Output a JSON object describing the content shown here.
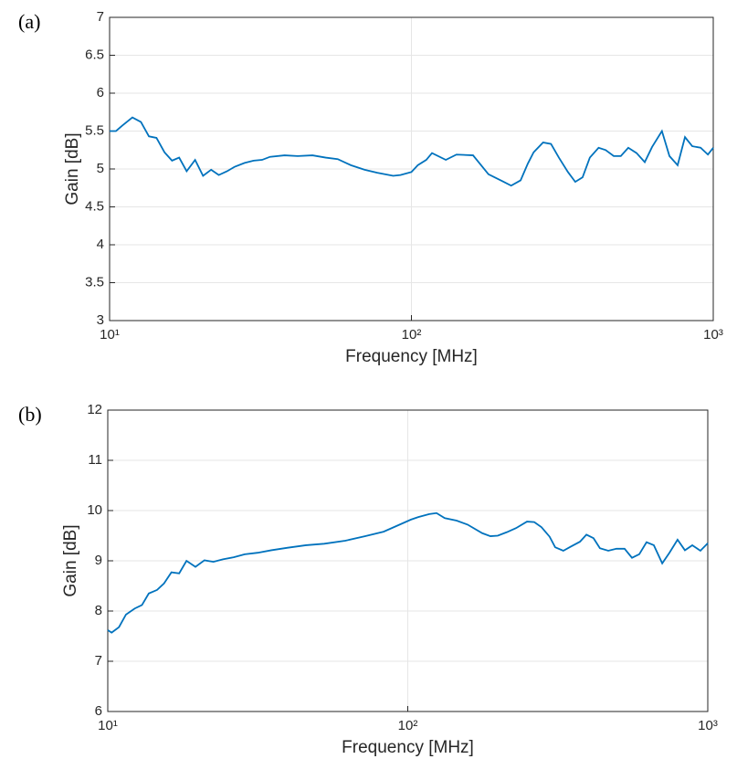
{
  "chart_data": [
    {
      "type": "line",
      "label": "(a)",
      "xlabel": "Frequency [MHz]",
      "ylabel": "Gain [dB]",
      "xscale": "log",
      "grid": true,
      "xlim": [
        10,
        1000
      ],
      "xticks": [
        {
          "value": 10,
          "label": "10¹"
        },
        {
          "value": 100,
          "label": "10²"
        },
        {
          "value": 1000,
          "label": "10³"
        }
      ],
      "ylim": [
        3,
        7
      ],
      "yticks": [
        3,
        3.5,
        4,
        4.5,
        5,
        5.5,
        6,
        6.5,
        7
      ],
      "x": [
        10,
        10.5,
        11,
        11.9,
        12.7,
        13.5,
        14.3,
        15.2,
        16.1,
        17,
        18,
        19.2,
        20.4,
        21.7,
        23,
        24.5,
        26,
        28,
        30,
        32,
        34,
        38,
        42,
        47,
        52,
        57,
        63,
        70,
        77,
        87,
        92,
        100,
        105,
        112,
        117,
        130,
        141,
        160,
        180,
        200,
        214,
        230,
        243,
        254,
        273,
        290,
        308,
        330,
        349,
        369,
        390,
        417,
        440,
        468,
        494,
        523,
        557,
        593,
        627,
        676,
        716,
        762,
        806,
        852,
        908,
        960,
        1000
      ],
      "series": [
        {
          "name": "Gain",
          "color": "#0072bd",
          "values": [
            5.5,
            5.5,
            5.57,
            5.68,
            5.62,
            5.43,
            5.41,
            5.22,
            5.11,
            5.15,
            4.97,
            5.12,
            4.91,
            4.99,
            4.92,
            4.97,
            5.03,
            5.08,
            5.11,
            5.12,
            5.16,
            5.18,
            5.17,
            5.18,
            5.15,
            5.13,
            5.05,
            4.99,
            4.95,
            4.91,
            4.92,
            4.96,
            5.05,
            5.12,
            5.21,
            5.12,
            5.19,
            5.18,
            4.93,
            4.84,
            4.78,
            4.85,
            5.07,
            5.22,
            5.35,
            5.33,
            5.15,
            4.96,
            4.83,
            4.89,
            5.15,
            5.28,
            5.25,
            5.17,
            5.17,
            5.28,
            5.21,
            5.09,
            5.29,
            5.5,
            5.17,
            5.05,
            5.42,
            5.3,
            5.28,
            5.19,
            5.28
          ]
        }
      ]
    },
    {
      "type": "line",
      "label": "(b)",
      "xlabel": "Frequency [MHz]",
      "ylabel": "Gain [dB]",
      "xscale": "log",
      "grid": true,
      "xlim": [
        10,
        1000
      ],
      "xticks": [
        {
          "value": 10,
          "label": "10¹"
        },
        {
          "value": 100,
          "label": "10²"
        },
        {
          "value": 1000,
          "label": "10³"
        }
      ],
      "ylim": [
        6,
        12
      ],
      "yticks": [
        6,
        7,
        8,
        9,
        10,
        11,
        12
      ],
      "x": [
        10,
        10.3,
        10.9,
        11.5,
        12.3,
        13.0,
        13.7,
        14.6,
        15.4,
        16.3,
        17.3,
        18.3,
        19.6,
        21.0,
        22.5,
        24.2,
        26.3,
        28.6,
        31.6,
        35.1,
        39.8,
        45.8,
        52.7,
        61.9,
        72.2,
        83.1,
        92.3,
        102.5,
        108.4,
        117.9,
        124.7,
        132.8,
        145.5,
        158.3,
        177.1,
        188.6,
        199.5,
        214,
        229.5,
        249.7,
        264,
        279,
        297,
        310,
        330,
        349,
        375,
        394,
        416,
        437,
        466,
        496,
        528,
        559,
        591,
        625,
        661,
        705,
        745,
        793,
        839,
        888,
        945,
        1000
      ],
      "series": [
        {
          "name": "Gain",
          "color": "#0072bd",
          "values": [
            7.62,
            7.57,
            7.68,
            7.93,
            8.05,
            8.12,
            8.35,
            8.42,
            8.55,
            8.77,
            8.75,
            9.0,
            8.88,
            9.01,
            8.98,
            9.03,
            9.07,
            9.13,
            9.16,
            9.21,
            9.26,
            9.31,
            9.34,
            9.4,
            9.49,
            9.58,
            9.7,
            9.82,
            9.87,
            9.93,
            9.95,
            9.85,
            9.8,
            9.72,
            9.55,
            9.49,
            9.5,
            9.57,
            9.65,
            9.78,
            9.77,
            9.67,
            9.48,
            9.27,
            9.2,
            9.28,
            9.38,
            9.52,
            9.45,
            9.25,
            9.2,
            9.24,
            9.24,
            9.06,
            9.13,
            9.37,
            9.31,
            8.95,
            9.16,
            9.42,
            9.21,
            9.31,
            9.2,
            9.35
          ]
        }
      ]
    }
  ]
}
